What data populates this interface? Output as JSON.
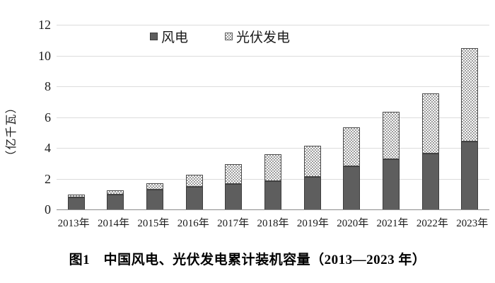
{
  "figure": {
    "caption": "图1　中国风电、光伏发电累计装机容量（2013—2023 年）"
  },
  "chart_data": {
    "type": "bar",
    "stacked": true,
    "title": "",
    "xlabel": "",
    "ylabel": "（亿千瓦）",
    "categories": [
      "2013年",
      "2014年",
      "2015年",
      "2016年",
      "2017年",
      "2018年",
      "2019年",
      "2020年",
      "2021年",
      "2022年",
      "2023年"
    ],
    "series": [
      {
        "name": "风电",
        "values": [
          0.77,
          0.96,
          1.29,
          1.49,
          1.64,
          1.84,
          2.1,
          2.82,
          3.28,
          3.65,
          4.41
        ],
        "color": "#5e5e5e",
        "fill": "solid"
      },
      {
        "name": "光伏发电",
        "values": [
          0.19,
          0.28,
          0.43,
          0.77,
          1.3,
          1.74,
          2.04,
          2.53,
          3.06,
          3.93,
          6.09
        ],
        "color": "#9e9e9e",
        "fill": "checker-pattern"
      }
    ],
    "totals": [
      0.96,
      1.24,
      1.72,
      2.26,
      2.94,
      3.58,
      4.14,
      5.35,
      6.34,
      7.58,
      10.5
    ],
    "ylim": [
      0,
      12
    ],
    "yticks": [
      0,
      2,
      4,
      6,
      8,
      10,
      12
    ],
    "grid": true,
    "legend_position": "top-center",
    "colors": {
      "wind_fill": "#5e5e5e",
      "segment_border": "#3c3c3c",
      "pattern_dot": "#9e9e9e",
      "pattern_base": "#fafafa",
      "gridline": "#dcdcdc",
      "axis_line": "#8c8c8c",
      "text": "#1a1a1a"
    }
  }
}
